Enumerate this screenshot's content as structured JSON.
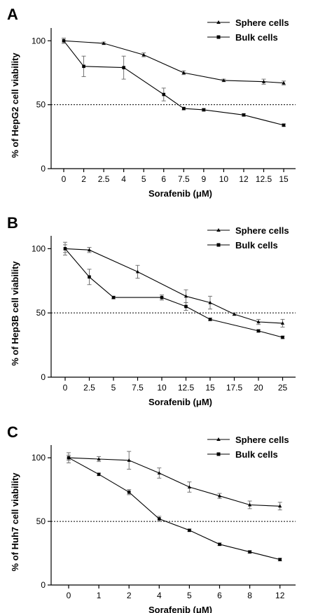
{
  "chart_data": [
    {
      "type": "line",
      "panel": "A",
      "categories": [
        "0",
        "2",
        "2.5",
        "4",
        "5",
        "6",
        "7.5",
        "9",
        "10",
        "12",
        "12.5",
        "15"
      ],
      "ylabel": "% of HepG2 cell viability",
      "xlabel": "Sorafenib (μM)",
      "ylim": [
        0,
        110
      ],
      "yticks": [
        "0",
        "50",
        "100"
      ],
      "threshold": 50,
      "legend_position": "top-right",
      "series": [
        {
          "name": "Sphere cells",
          "marker": "triangle",
          "points": [
            [
              0,
              100,
              2
            ],
            [
              2.5,
              98,
              1
            ],
            [
              5,
              89,
              1.5
            ],
            [
              7.5,
              75,
              1.5
            ],
            [
              10,
              69,
              1
            ],
            [
              12.5,
              68,
              2
            ],
            [
              15,
              67,
              1.5
            ]
          ]
        },
        {
          "name": "Bulk cells",
          "marker": "square",
          "points": [
            [
              0,
              100,
              2
            ],
            [
              2,
              80,
              8
            ],
            [
              4,
              79,
              9
            ],
            [
              6,
              58,
              5
            ],
            [
              7.5,
              47,
              1
            ],
            [
              9,
              46,
              1
            ],
            [
              12,
              42,
              1
            ],
            [
              15,
              34,
              1
            ]
          ]
        }
      ]
    },
    {
      "type": "line",
      "panel": "B",
      "categories": [
        "0",
        "2.5",
        "5",
        "7.5",
        "10",
        "12.5",
        "15",
        "17.5",
        "20",
        "25"
      ],
      "ylabel": "% of Hep3B cell viability",
      "xlabel": "Sorafenib (μM)",
      "ylim": [
        0,
        110
      ],
      "yticks": [
        "0",
        "50",
        "100"
      ],
      "threshold": 50,
      "legend_position": "top-right",
      "series": [
        {
          "name": "Sphere cells",
          "marker": "triangle",
          "points": [
            [
              0,
              100,
              3
            ],
            [
              2.5,
              99,
              2
            ],
            [
              7.5,
              82,
              5
            ],
            [
              12.5,
              63,
              5
            ],
            [
              15,
              58,
              5
            ],
            [
              17.5,
              49,
              1
            ],
            [
              20,
              43,
              2
            ],
            [
              25,
              42,
              3
            ]
          ]
        },
        {
          "name": "Bulk cells",
          "marker": "square",
          "points": [
            [
              0,
              100,
              5
            ],
            [
              2.5,
              78,
              6
            ],
            [
              5,
              62,
              1
            ],
            [
              10,
              62,
              2
            ],
            [
              12.5,
              55,
              3
            ],
            [
              15,
              45,
              1
            ],
            [
              20,
              36,
              1
            ],
            [
              25,
              31,
              1
            ]
          ]
        }
      ]
    },
    {
      "type": "line",
      "panel": "C",
      "categories": [
        "0",
        "1",
        "2",
        "4",
        "5",
        "6",
        "8",
        "12"
      ],
      "ylabel": "% of Huh7 cell viability",
      "xlabel": "Sorafenib (μM)",
      "ylim": [
        0,
        110
      ],
      "yticks": [
        "0",
        "50",
        "100"
      ],
      "threshold": 50,
      "legend_position": "top-right",
      "series": [
        {
          "name": "Sphere cells",
          "marker": "triangle",
          "points": [
            [
              0,
              100,
              4
            ],
            [
              1,
              99,
              2
            ],
            [
              2,
              98,
              7
            ],
            [
              4,
              88,
              4
            ],
            [
              5,
              77,
              4
            ],
            [
              6,
              70,
              2
            ],
            [
              8,
              63,
              3
            ],
            [
              12,
              62,
              3
            ]
          ]
        },
        {
          "name": "Bulk cells",
          "marker": "square",
          "points": [
            [
              0,
              100,
              2
            ],
            [
              1,
              87,
              1
            ],
            [
              2,
              73,
              2
            ],
            [
              4,
              52,
              2
            ],
            [
              5,
              43,
              1
            ],
            [
              6,
              32,
              1
            ],
            [
              8,
              26,
              1
            ],
            [
              12,
              20,
              1
            ]
          ]
        }
      ]
    }
  ]
}
